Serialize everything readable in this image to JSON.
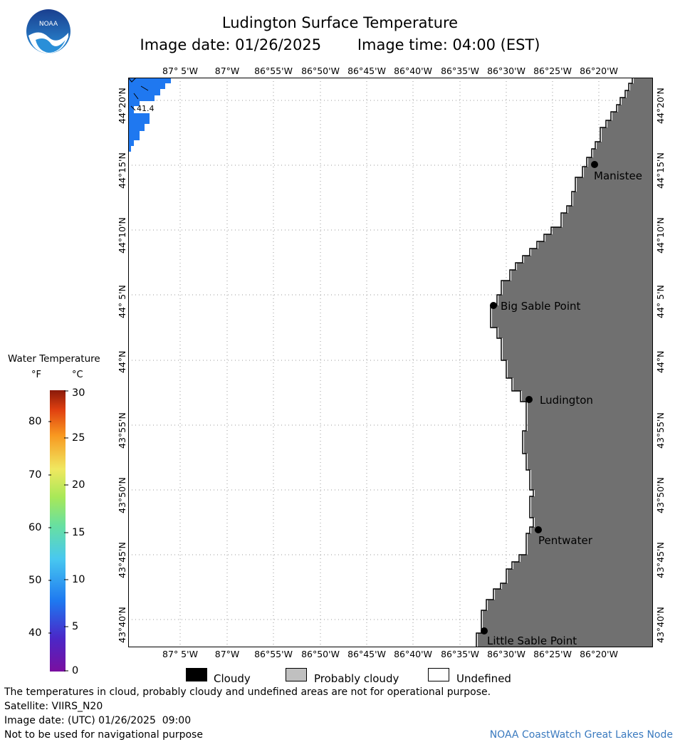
{
  "title": "Ludington Surface Temperature",
  "image_date_label": "Image date: 01/26/2025",
  "image_time_label": "Image time: 04:00 (EST)",
  "logo": {
    "text": "NOAA",
    "icon": "noaa-logo-icon"
  },
  "map": {
    "lon_labels": [
      "87° 5'W",
      "87°W",
      "86°55'W",
      "86°50'W",
      "86°45'W",
      "86°40'W",
      "86°35'W",
      "86°30'W",
      "86°25'W",
      "86°20'W"
    ],
    "lat_labels": [
      "44°20'N",
      "44°15'N",
      "44°10'N",
      "44° 5'N",
      "44°N",
      "43°55'N",
      "43°50'N",
      "43°45'N",
      "43°40'N"
    ],
    "cities": [
      "Manistee",
      "Big Sable Point",
      "Ludington",
      "Pentwater",
      "Little Sable Point"
    ],
    "temp_label": "41.4",
    "colors": {
      "land": "#707070",
      "water_sample": "#1f78f0",
      "coast": "#000000",
      "grid": "#9a9a9a"
    }
  },
  "colorbar": {
    "title": "Water Temperature",
    "unit_f": "°F",
    "unit_c": "°C",
    "f_ticks": [
      "80",
      "70",
      "60",
      "50",
      "40"
    ],
    "c_ticks": [
      "30",
      "25",
      "20",
      "15",
      "10",
      "5",
      "0"
    ]
  },
  "legend": {
    "cloudy": "Cloudy",
    "probably_cloudy": "Probably cloudy",
    "undefined": "Undefined"
  },
  "footer": {
    "note": "The temperatures in cloud, probably cloudy and undefined areas are not for operational purpose.",
    "satellite": "Satellite: VIIRS_N20",
    "utc_date": "Image date: (UTC) 01/26/2025  09:00",
    "nav_warning": "Not to be used for navigational purpose",
    "credit": "NOAA CoastWatch Great Lakes Node"
  }
}
